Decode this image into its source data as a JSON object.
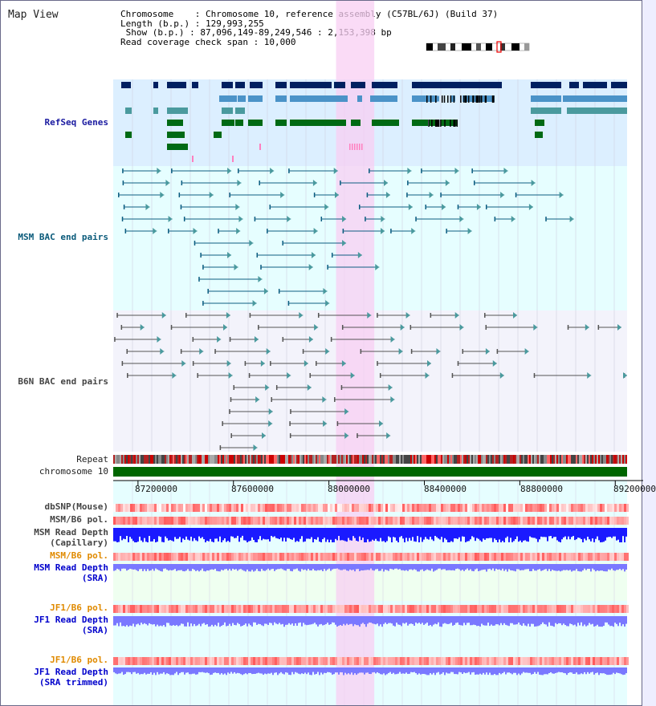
{
  "window": {
    "title": "Map View"
  },
  "header": {
    "chromosome_line": "Chromosome    : Chromosome 10, reference assembly (C57BL/6J) (Build 37)",
    "length_line": "Length (b.p.) : 129,993,255",
    "show_line": " Show (b.p.) : 87,096,149-89,249,546 : 2,153,398 bp",
    "span_line": "Read coverage check span : 10,000"
  },
  "tracks": {
    "refseq": "RefSeq Genes",
    "msm_bac": "MSM BAC end pairs",
    "b6n_bac": "B6N BAC end pairs",
    "repeat": "Repeat",
    "chromosome": "chromosome 10",
    "dbsnp": "dbSNP(Mouse)",
    "msm_b6_pol_1": "MSM/B6 pol.",
    "msm_depth_cap_1": "MSM Read Depth",
    "msm_depth_cap_2": "(Capillary)",
    "msm_b6_pol_2": "MSM/B6 pol.",
    "msm_depth_sra_1": "MSM Read Depth",
    "msm_depth_sra_2": "(SRA)",
    "jf1_b6_pol_1": "JF1/B6 pol.",
    "jf1_depth_1": "JF1 Read Depth",
    "jf1_depth_2": "(SRA)",
    "jf1_b6_pol_2": "JF1/B6 pol.",
    "jf1_depth_trim_1": "JF1 Read Depth",
    "jf1_depth_trim_2": "(SRA trimmed)"
  },
  "axis": {
    "ticks": [
      "87200000",
      "87600000",
      "88000000",
      "88400000",
      "88800000",
      "89200000"
    ],
    "show_start": 87096149,
    "show_end": 89249546
  },
  "highlight_region": {
    "start": 88030000,
    "end": 88190000
  },
  "colors": {
    "refseq_bg": "#dcefff",
    "bac_bg": "#e6feff",
    "b6n_bg": "#f3f3fb",
    "highlight": "#f8cff3",
    "gene_dark": "#002060",
    "gene_mid": "#4b93c8",
    "gene_green": "#006a14",
    "gene_teal": "#4a9a9e",
    "msm_line": "#0e5e82",
    "b6n_line": "#555555",
    "chromosome_bar": "#006600",
    "depth_blue": "#1a1aff",
    "depth_violet": "#7a78ff",
    "snp_red": "#ff6f6f"
  }
}
